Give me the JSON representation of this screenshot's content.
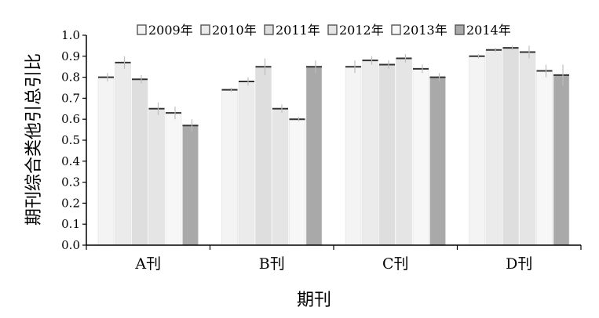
{
  "chart_data": {
    "type": "bar",
    "title": "",
    "xlabel": "期刊",
    "ylabel": "期刊综合类他引总引比",
    "ylim": [
      0.0,
      1.0
    ],
    "yticks": [
      "0.0",
      "0.1",
      "0.2",
      "0.3",
      "0.4",
      "0.5",
      "0.6",
      "0.7",
      "0.8",
      "0.9",
      "1.0"
    ],
    "categories": [
      "A刊",
      "B刊",
      "C刊",
      "D刊"
    ],
    "legend_position": "top",
    "grid": false,
    "error_bars": true,
    "series": [
      {
        "name": "2009年",
        "values": [
          0.8,
          0.74,
          0.85,
          0.9
        ],
        "errors": [
          0.02,
          0.01,
          0.03,
          0.01
        ],
        "color": "#f4f4f4"
      },
      {
        "name": "2010年",
        "values": [
          0.87,
          0.78,
          0.88,
          0.93
        ],
        "errors": [
          0.03,
          0.02,
          0.02,
          0.01
        ],
        "color": "#ebebeb"
      },
      {
        "name": "2011年",
        "values": [
          0.79,
          0.85,
          0.86,
          0.94
        ],
        "errors": [
          0.02,
          0.04,
          0.02,
          0.01
        ],
        "color": "#dedede"
      },
      {
        "name": "2012年",
        "values": [
          0.65,
          0.65,
          0.89,
          0.92
        ],
        "errors": [
          0.03,
          0.02,
          0.02,
          0.03
        ],
        "color": "#e5e5e5"
      },
      {
        "name": "2013年",
        "values": [
          0.63,
          0.6,
          0.84,
          0.83
        ],
        "errors": [
          0.03,
          0.01,
          0.02,
          0.03
        ],
        "color": "#f7f7f7"
      },
      {
        "name": "2014年",
        "values": [
          0.57,
          0.85,
          0.8,
          0.81
        ],
        "errors": [
          0.03,
          0.03,
          0.02,
          0.05
        ],
        "color": "#a9a9a9"
      }
    ]
  }
}
